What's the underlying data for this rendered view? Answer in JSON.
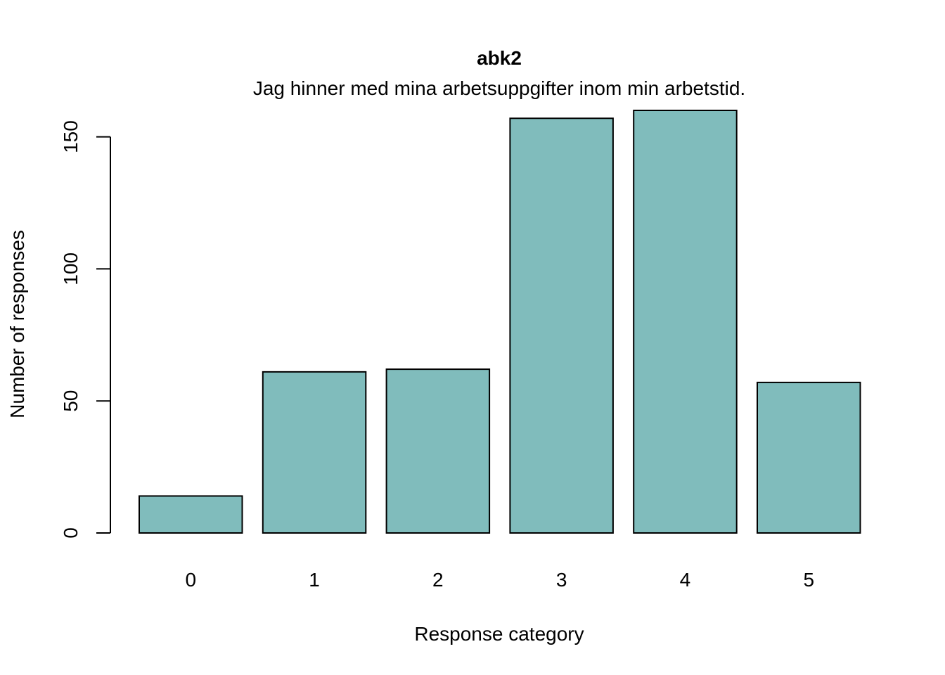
{
  "chart_data": {
    "type": "bar",
    "title": "abk2",
    "subtitle": "Jag hinner med mina arbetsuppgifter inom min arbetstid.",
    "xlabel": "Response category",
    "ylabel": "Number of responses",
    "categories": [
      "0",
      "1",
      "2",
      "3",
      "4",
      "5"
    ],
    "values": [
      14,
      61,
      62,
      157,
      160,
      57
    ],
    "ylim": [
      0,
      160
    ],
    "yticks": [
      0,
      50,
      100,
      150
    ],
    "bar_color": "#80BCBC",
    "grid": false,
    "legend": "none"
  }
}
